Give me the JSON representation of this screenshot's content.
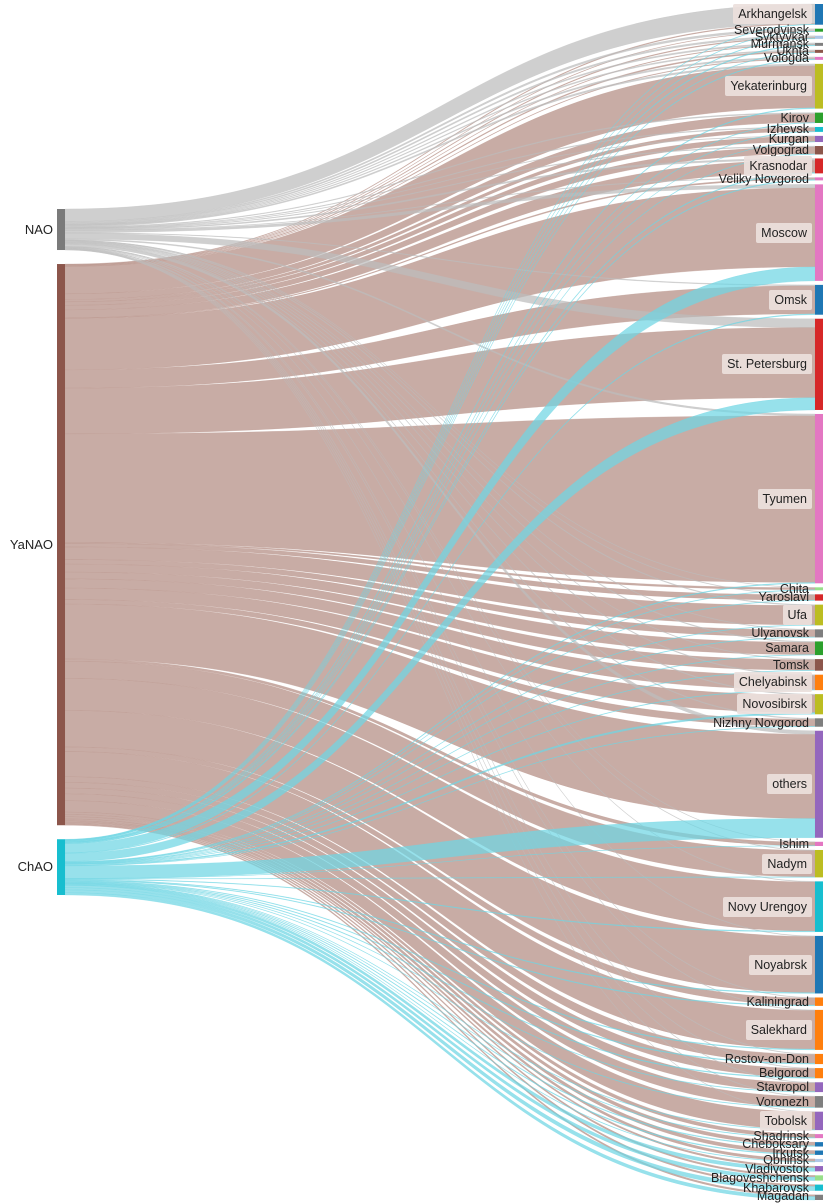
{
  "chart_data": {
    "type": "sankey",
    "sources": [
      {
        "name": "NAO",
        "color": "#7a7a7a"
      },
      {
        "name": "YaNAO",
        "color": "#8c564b"
      },
      {
        "name": "ChAO",
        "color": "#17becf"
      }
    ],
    "targets": [
      {
        "name": "Arkhangelsk",
        "color": "#1f77b4"
      },
      {
        "name": "Severodvinsk",
        "color": "#2ca02c"
      },
      {
        "name": "Syktyvkar",
        "color": "#aec7e8"
      },
      {
        "name": "Murmansk",
        "color": "#7f7f7f"
      },
      {
        "name": "Ukhta",
        "color": "#8c564b"
      },
      {
        "name": "Vologda",
        "color": "#e377c2"
      },
      {
        "name": "Yekaterinburg",
        "color": "#bcbd22"
      },
      {
        "name": "Kirov",
        "color": "#2ca02c"
      },
      {
        "name": "Izhevsk",
        "color": "#17becf"
      },
      {
        "name": "Kurgan",
        "color": "#9467bd"
      },
      {
        "name": "Volgograd",
        "color": "#8c564b"
      },
      {
        "name": "Krasnodar",
        "color": "#d62728"
      },
      {
        "name": "Veliky Novgorod",
        "color": "#e377c2"
      },
      {
        "name": "Moscow",
        "color": "#e377c2"
      },
      {
        "name": "Omsk",
        "color": "#1f77b4"
      },
      {
        "name": "St. Petersburg",
        "color": "#d62728"
      },
      {
        "name": "Tyumen",
        "color": "#e377c2"
      },
      {
        "name": "Chita",
        "color": "#98df8a"
      },
      {
        "name": "Yaroslavl",
        "color": "#d62728"
      },
      {
        "name": "Ufa",
        "color": "#bcbd22"
      },
      {
        "name": "Ulyanovsk",
        "color": "#7f7f7f"
      },
      {
        "name": "Samara",
        "color": "#2ca02c"
      },
      {
        "name": "Tomsk",
        "color": "#8c564b"
      },
      {
        "name": "Chelyabinsk",
        "color": "#ff7f0e"
      },
      {
        "name": "Novosibirsk",
        "color": "#bcbd22"
      },
      {
        "name": "Nizhny Novgorod",
        "color": "#7f7f7f"
      },
      {
        "name": "others",
        "color": "#9467bd"
      },
      {
        "name": "Ishim",
        "color": "#e377c2"
      },
      {
        "name": "Nadym",
        "color": "#bcbd22"
      },
      {
        "name": "Novy Urengoy",
        "color": "#17becf"
      },
      {
        "name": "Noyabrsk",
        "color": "#1f77b4"
      },
      {
        "name": "Kaliningrad",
        "color": "#ff7f0e"
      },
      {
        "name": "Salekhard",
        "color": "#ff7f0e"
      },
      {
        "name": "Rostov-on-Don",
        "color": "#ff7f0e"
      },
      {
        "name": "Belgorod",
        "color": "#ff7f0e"
      },
      {
        "name": "Stavropol",
        "color": "#9467bd"
      },
      {
        "name": "Voronezh",
        "color": "#7f7f7f"
      },
      {
        "name": "Tobolsk",
        "color": "#9467bd"
      },
      {
        "name": "Shadrinsk",
        "color": "#e377c2"
      },
      {
        "name": "Cheboksary",
        "color": "#1f77b4"
      },
      {
        "name": "Irkutsk",
        "color": "#1f77b4"
      },
      {
        "name": "Obninsk",
        "color": "#aec7e8"
      },
      {
        "name": "Vladivostok",
        "color": "#9467bd"
      },
      {
        "name": "Blagoveshchensk",
        "color": "#98df8a"
      },
      {
        "name": "Khabarovsk",
        "color": "#17becf"
      },
      {
        "name": "Magadan",
        "color": "#7f7f7f"
      }
    ],
    "links": {
      "NAO": {
        "Arkhangelsk": 11,
        "Severodvinsk": 1,
        "Syktyvkar": 1,
        "Murmansk": 0.5,
        "Ukhta": 0.5,
        "Vologda": 0.5,
        "Yekaterinburg": 1,
        "Kirov": 0.6,
        "Izhevsk": 0.5,
        "Kurgan": 0.3,
        "Volgograd": 0.5,
        "Krasnodar": 1,
        "Veliky Novgorod": 0.3,
        "Moscow": 2,
        "Omsk": 0.5,
        "St. Petersburg": 5,
        "Tyumen": 1,
        "Chita": 0.2,
        "Yaroslavl": 0.3,
        "Ufa": 0.5,
        "Ulyanovsk": 0.3,
        "Samara": 0.5,
        "Tomsk": 0.3,
        "Chelyabinsk": 0.5,
        "Novosibirsk": 0.5,
        "Nizhny Novgorod": 0.5,
        "others": 2,
        "Ishim": 0.2,
        "Nadym": 0.3,
        "Novy Urengoy": 0.3,
        "Noyabrsk": 0.3,
        "Kaliningrad": 0.3,
        "Salekhard": 0.3,
        "Rostov-on-Don": 0.3,
        "Belgorod": 0.3,
        "Stavropol": 0.3,
        "Voronezh": 0.3,
        "Tobolsk": 0.2
      },
      "YaNAO": {
        "Arkhangelsk": 0.5,
        "Severodvinsk": 0.2,
        "Syktyvkar": 0.5,
        "Murmansk": 0.2,
        "Ukhta": 0.5,
        "Vologda": 0.2,
        "Yekaterinburg": 24,
        "Kirov": 5,
        "Izhevsk": 2,
        "Kurgan": 3,
        "Volgograd": 4,
        "Krasnodar": 7,
        "Veliky Novgorod": 0.5,
        "Moscow": 45,
        "Omsk": 16,
        "St. Petersburg": 40,
        "Tyumen": 95,
        "Chita": 1,
        "Yaroslavl": 3,
        "Ufa": 11,
        "Ulyanovsk": 4,
        "Samara": 7,
        "Tomsk": 6,
        "Chelyabinsk": 8,
        "Novosibirsk": 10,
        "Nizhny Novgorod": 4,
        "others": 48,
        "Ishim": 2,
        "Nadym": 15,
        "Novy Urengoy": 28,
        "Noyabrsk": 32,
        "Kaliningrad": 4,
        "Salekhard": 22,
        "Rostov-on-Don": 5,
        "Belgorod": 5,
        "Stavropol": 5,
        "Voronezh": 6,
        "Tobolsk": 10,
        "Shadrinsk": 2,
        "Cheboksary": 2,
        "Irkutsk": 2,
        "Obninsk": 1.5,
        "Vladivostok": 1,
        "Blagoveshchensk": 1,
        "Khabarovsk": 1,
        "Magadan": 1
      },
      "ChAO": {
        "Arkhangelsk": 0.3,
        "Severodvinsk": 0.2,
        "Syktyvkar": 0.3,
        "Murmansk": 0.3,
        "Ukhta": 0.2,
        "Vologda": 0.2,
        "Yekaterinburg": 0.5,
        "Kirov": 0.3,
        "Izhevsk": 0.3,
        "Kurgan": 0.2,
        "Volgograd": 0.3,
        "Krasnodar": 0.5,
        "Veliky Novgorod": 0.3,
        "Moscow": 8,
        "Omsk": 0.5,
        "St. Petersburg": 7,
        "Tyumen": 0.5,
        "Chita": 0.3,
        "Yaroslavl": 0.3,
        "Ufa": 0.3,
        "Ulyanovsk": 0.3,
        "Samara": 0.3,
        "Tomsk": 0.3,
        "Chelyabinsk": 0.3,
        "Novosibirsk": 1,
        "Nizhny Novgorod": 0.3,
        "others": 11,
        "Ishim": 0.2,
        "Nadym": 0.3,
        "Novy Urengoy": 0.5,
        "Noyabrsk": 0.5,
        "Kaliningrad": 0.5,
        "Salekhard": 0.5,
        "Rostov-on-Don": 0.5,
        "Belgorod": 0.5,
        "Stavropol": 0.3,
        "Voronezh": 0.3,
        "Tobolsk": 0.3,
        "Shadrinsk": 0.3,
        "Cheboksary": 0.5,
        "Irkutsk": 0.5,
        "Obninsk": 0.3,
        "Vladivostok": 2,
        "Blagoveshchensk": 2,
        "Khabarovsk": 2.5,
        "Magadan": 2
      }
    }
  }
}
